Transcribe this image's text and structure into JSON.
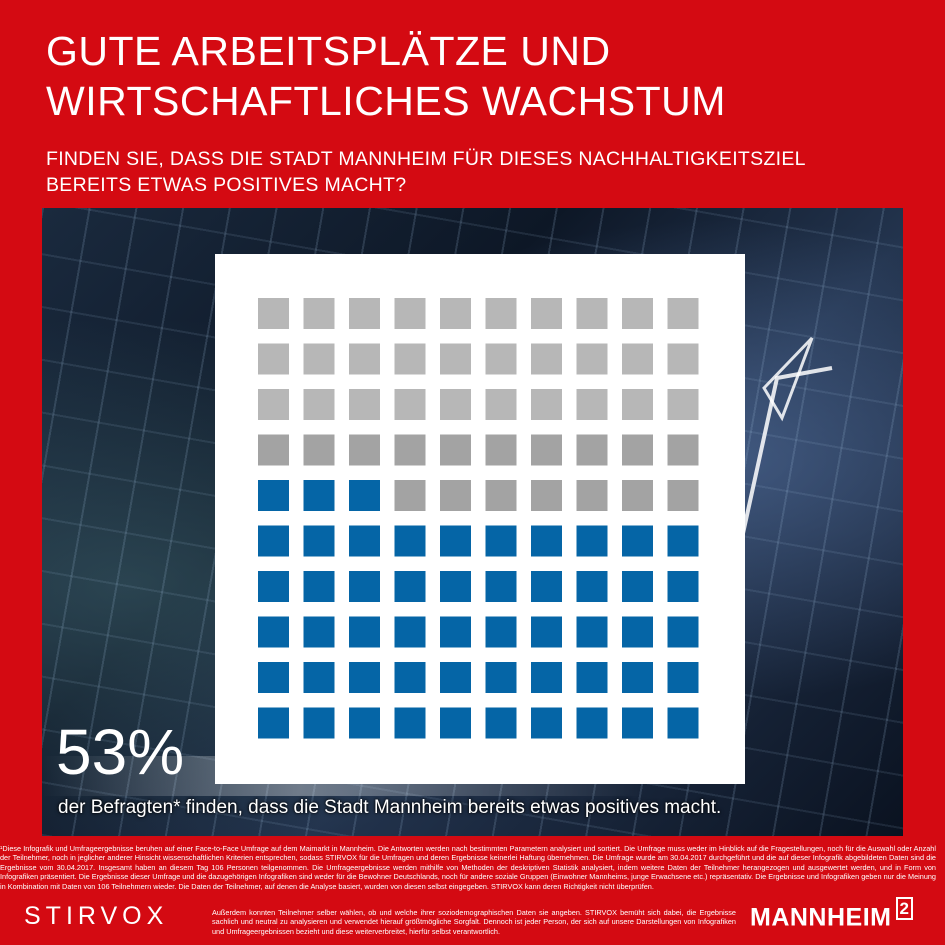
{
  "header": {
    "title_lines": [
      "GUTE ARBEITSPLÄTZE UND",
      "WIRTSCHAFTLICHES WACHSTUM"
    ],
    "question_lines": [
      "FINDEN SIE, DASS DIE STADT MANNHEIM FÜR DIESES NACHHALTIGKEITSZIEL",
      "BEREITS ETWAS POSITIVES MACHT?"
    ]
  },
  "result": {
    "percent_label": "53%",
    "caption": "der Befragten* finden, dass die Stadt Mannheim bereits etwas positives macht."
  },
  "chart_data": {
    "type": "waffle",
    "rows": 10,
    "columns": 10,
    "total": 100,
    "highlighted": 53,
    "colors": {
      "highlighted": "#0565a6",
      "rest": "#b7b7b7",
      "rest_dark": "#a3a3a3"
    }
  },
  "footer": {
    "disclaimer_main": "¹Diese Infografik und Umfrageergebnisse beruhen auf einer Face-to-Face Umfrage auf dem Maimarkt in Mannheim. Die Antworten werden nach bestimmten Parametern analysiert und sortiert. Die Umfrage muss weder im Hinblick auf die Fragestellungen, noch für die Auswahl oder Anzahl der Teilnehmer, noch in jeglicher anderer Hinsicht wissenschaftlichen Kriterien entsprechen, sodass STIRVOX für die Umfragen und deren Ergebnisse keinerlei Haftung übernehmen. Die Umfrage wurde am 30.04.2017 durchgeführt und die auf dieser Infografik abgebildeten Daten sind die Ergebnisse vom 30.04.2017. Insgesamt haben an diesem Tag 106 Personen teilgenommen. Die Umfrageergebnisse werden mithilfe von Methoden der deskriptiven Statistik analysiert, indem weitere Daten der Teilnehmer herangezogen und ausgewertet werden, und in Form von Infografiken präsentiert. Die Ergebnisse dieser Umfrage und die dazugehörigen Infografiken sind weder für die Bewohner Deutschlands, noch für andere soziale Gruppen (Einwohner Mannheims, junge Erwachsene etc.) repräsentativ. Die Ergebnisse und Infografiken geben nur die Meinung in Kombination mit Daten von 106 Teilnehmern wieder. Die Daten der Teilnehmer, auf denen die Analyse basiert, wurden von diesen selbst eingegeben. STIRVOX kann deren Richtigkeit nicht überprüfen.",
    "disclaimer_extra": "Außerdem konnten Teilnehmer selber wählen, ob und welche ihrer soziodemographischen Daten sie angeben. STIRVOX bemüht sich dabei, die Ergebnisse sachlich und neutral zu analysieren und verwendet hierauf größtmögliche Sorgfalt. Dennoch ist jeder Person, der sich auf unsere Darstellungen von Infografiken und Umfrageergebnissen bezieht und diese weiterverbreitet, hierfür selbst verantwortlich.",
    "logo_left": "STIRVOX",
    "logo_right": "MANNHEIM",
    "logo_right_mark": "2"
  }
}
